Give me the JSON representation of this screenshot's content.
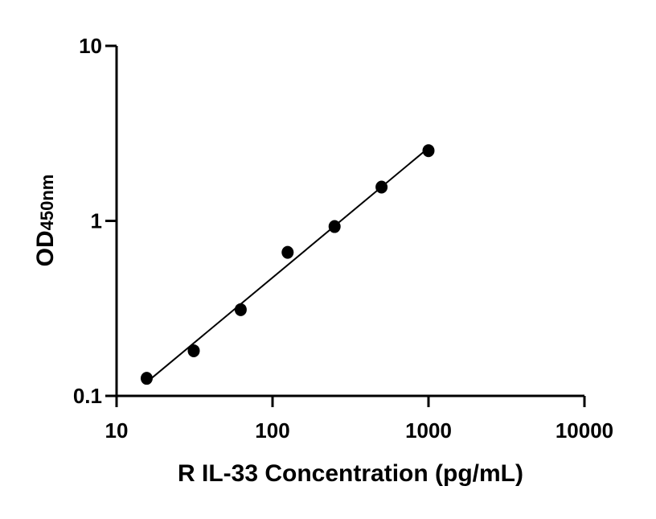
{
  "chart_data": {
    "type": "scatter",
    "xlabel": "R IL-33 Concentration (pg/mL)",
    "ylabel": "OD",
    "ylabel_subscript": "450nm",
    "x_scale": "log",
    "y_scale": "log",
    "xlim": [
      10,
      10000
    ],
    "ylim": [
      0.1,
      10
    ],
    "x_ticks": [
      "10",
      "100",
      "1000",
      "10000"
    ],
    "y_ticks": [
      "0.1",
      "1",
      "10"
    ],
    "grid": false,
    "legend": "none",
    "fit_line": "linear fit on log-log axes",
    "series": [
      {
        "x": [
          15.6,
          31.25,
          62.5,
          125,
          250,
          500,
          1000
        ],
        "y": [
          0.126,
          0.181,
          0.311,
          0.661,
          0.928,
          1.56,
          2.52
        ],
        "color": "#000000"
      }
    ]
  }
}
